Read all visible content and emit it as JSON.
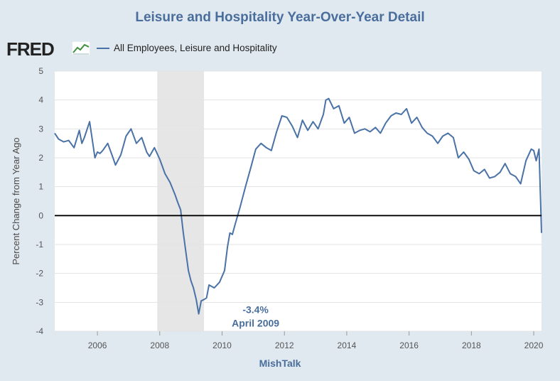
{
  "colors": {
    "background": "#e1e9f0",
    "plot_background": "#ffffff",
    "series": "#4a72a6",
    "recession": "#e6e6e6",
    "zero_line": "#000000",
    "title": "#4a6e9c"
  },
  "header": {
    "title": "Leisure and Hospitality Year-Over-Year Detail",
    "logo_text": "FRED",
    "logo_icon": "chart-line-icon"
  },
  "footer": {
    "source": "MishTalk"
  },
  "chart_data": {
    "type": "line",
    "title": "Leisure and Hospitality Year-Over-Year Detail",
    "xlabel": "",
    "ylabel": "Percent Change from Year Ago",
    "xlim": [
      2004.63,
      2020.25
    ],
    "ylim": [
      -4,
      5
    ],
    "yticks": [
      5,
      4,
      3,
      2,
      1,
      0,
      -1,
      -2,
      -3,
      -4
    ],
    "xticks": [
      2006,
      2008,
      2010,
      2012,
      2014,
      2016,
      2018,
      2020
    ],
    "grid": true,
    "legend": "top-left",
    "recession": {
      "start": 2007.92,
      "end": 2009.42
    },
    "series": [
      {
        "name": "All Employees, Leisure and Hospitality",
        "x": [
          2004.63,
          2004.75,
          2004.92,
          2005.08,
          2005.25,
          2005.42,
          2005.5,
          2005.58,
          2005.75,
          2005.92,
          2006.0,
          2006.08,
          2006.17,
          2006.33,
          2006.5,
          2006.58,
          2006.75,
          2006.92,
          2007.08,
          2007.25,
          2007.42,
          2007.58,
          2007.67,
          2007.83,
          2008.0,
          2008.17,
          2008.33,
          2008.5,
          2008.58,
          2008.67,
          2008.75,
          2008.83,
          2008.92,
          2009.0,
          2009.08,
          2009.17,
          2009.25,
          2009.33,
          2009.42,
          2009.5,
          2009.58,
          2009.75,
          2009.92,
          2010.08,
          2010.17,
          2010.25,
          2010.33,
          2010.42,
          2010.58,
          2010.75,
          2010.92,
          2011.08,
          2011.25,
          2011.42,
          2011.58,
          2011.75,
          2011.92,
          2012.08,
          2012.25,
          2012.42,
          2012.58,
          2012.75,
          2012.92,
          2013.08,
          2013.25,
          2013.33,
          2013.42,
          2013.58,
          2013.75,
          2013.92,
          2014.08,
          2014.25,
          2014.42,
          2014.58,
          2014.75,
          2014.92,
          2015.08,
          2015.25,
          2015.42,
          2015.58,
          2015.75,
          2015.92,
          2016.08,
          2016.25,
          2016.42,
          2016.58,
          2016.75,
          2016.92,
          2017.08,
          2017.25,
          2017.42,
          2017.58,
          2017.75,
          2017.92,
          2018.08,
          2018.25,
          2018.42,
          2018.58,
          2018.75,
          2018.92,
          2019.08,
          2019.25,
          2019.42,
          2019.58,
          2019.75,
          2019.92,
          2020.0,
          2020.08,
          2020.17,
          2020.25
        ],
        "y": [
          2.85,
          2.65,
          2.55,
          2.6,
          2.35,
          2.95,
          2.5,
          2.7,
          3.25,
          2.0,
          2.2,
          2.15,
          2.25,
          2.5,
          2.0,
          1.75,
          2.1,
          2.75,
          3.0,
          2.5,
          2.7,
          2.2,
          2.05,
          2.35,
          1.95,
          1.45,
          1.15,
          0.7,
          0.45,
          0.2,
          -0.55,
          -1.2,
          -1.9,
          -2.25,
          -2.5,
          -2.9,
          -3.4,
          -2.95,
          -2.9,
          -2.85,
          -2.4,
          -2.5,
          -2.3,
          -1.9,
          -1.1,
          -0.6,
          -0.65,
          -0.3,
          0.3,
          1.0,
          1.65,
          2.3,
          2.5,
          2.35,
          2.25,
          2.9,
          3.45,
          3.4,
          3.1,
          2.7,
          3.3,
          2.95,
          3.25,
          3.0,
          3.5,
          4.0,
          4.05,
          3.7,
          3.8,
          3.2,
          3.4,
          2.85,
          2.95,
          3.0,
          2.9,
          3.05,
          2.85,
          3.2,
          3.45,
          3.55,
          3.5,
          3.7,
          3.2,
          3.4,
          3.05,
          2.85,
          2.75,
          2.5,
          2.75,
          2.85,
          2.7,
          2.0,
          2.2,
          1.95,
          1.55,
          1.45,
          1.6,
          1.3,
          1.35,
          1.5,
          1.8,
          1.45,
          1.35,
          1.1,
          1.9,
          2.3,
          2.25,
          1.9,
          2.3,
          -0.6
        ]
      }
    ],
    "annotations": [
      {
        "text_line1": "-3.4%",
        "text_line2": "April 2009",
        "x": 2009.25,
        "y": -3.4
      }
    ]
  }
}
